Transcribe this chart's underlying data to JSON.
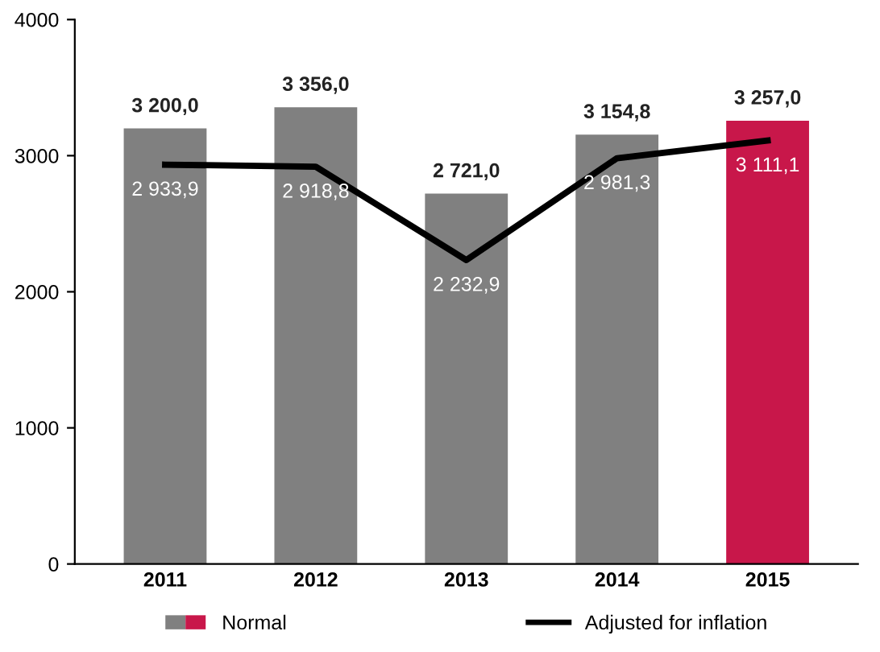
{
  "chart_data": {
    "type": "bar",
    "categories": [
      "2011",
      "2012",
      "2013",
      "2014",
      "2015"
    ],
    "series": [
      {
        "name": "Normal",
        "colors": [
          "#808080",
          "#808080",
          "#808080",
          "#808080",
          "#c8174a"
        ],
        "values": [
          3200.0,
          3356.0,
          2721.0,
          3154.8,
          3257.0
        ],
        "value_labels": [
          "3 200,0",
          "3 356,0",
          "2 721,0",
          "3 154,8",
          "3 257,0"
        ]
      },
      {
        "name": "Adjusted for inflation",
        "type": "line",
        "color": "#000000",
        "values": [
          2933.9,
          2918.8,
          2232.9,
          2981.3,
          3111.1
        ],
        "value_labels": [
          "2 933,9",
          "2 918,8",
          "2 232,9",
          "2 981,3",
          "3 111,1"
        ]
      }
    ],
    "ylim": [
      0,
      4000
    ],
    "yticks": [
      0,
      1000,
      2000,
      3000,
      4000
    ],
    "grid": false,
    "legend": "bottom"
  }
}
